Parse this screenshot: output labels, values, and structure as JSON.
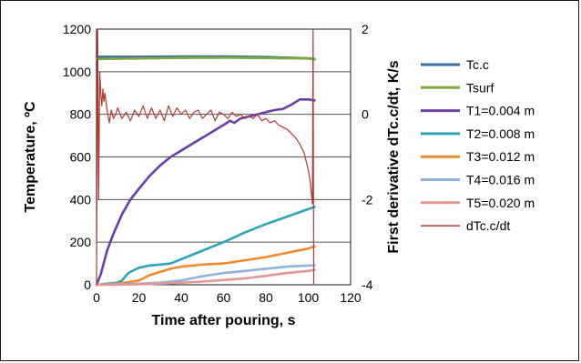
{
  "chart_data": {
    "type": "line",
    "xlabel": "Time after pouring, s",
    "ylabel": "Temperature, ºC",
    "y2label": "First derivative dTc.c/dt, K/s",
    "xlim": [
      0,
      120
    ],
    "ylim": [
      0,
      1200
    ],
    "y2lim": [
      -4,
      2
    ],
    "x_ticks": [
      "0",
      "20",
      "40",
      "60",
      "80",
      "100",
      "120"
    ],
    "y_ticks": [
      "0",
      "200",
      "400",
      "600",
      "800",
      "1000",
      "1200"
    ],
    "y2_ticks": [
      "-4",
      "-2",
      "0",
      "2"
    ],
    "grid": "horizontal",
    "legend_position": "right",
    "series": [
      {
        "name": "Tc.c",
        "color": "#3a6ea5",
        "axis": "left",
        "x": [
          0,
          20,
          40,
          60,
          80,
          100,
          103
        ],
        "y": [
          1070,
          1070,
          1072,
          1072,
          1069,
          1063,
          1060
        ]
      },
      {
        "name": "Tsurf",
        "color": "#7cab3e",
        "axis": "left",
        "x": [
          0,
          20,
          40,
          60,
          80,
          100,
          103
        ],
        "y": [
          1060,
          1062,
          1065,
          1066,
          1064,
          1062,
          1058
        ]
      },
      {
        "name": "T1=0.004 m",
        "color": "#6a40a8",
        "axis": "left",
        "x": [
          0,
          2,
          5,
          8,
          12,
          16,
          20,
          25,
          30,
          35,
          40,
          45,
          50,
          55,
          60,
          63,
          65,
          68,
          72,
          76,
          80,
          84,
          88,
          92,
          96,
          100,
          103
        ],
        "y": [
          0,
          50,
          160,
          240,
          330,
          400,
          450,
          510,
          560,
          600,
          630,
          660,
          690,
          720,
          750,
          770,
          760,
          780,
          790,
          800,
          810,
          820,
          825,
          845,
          870,
          870,
          865
        ]
      },
      {
        "name": "T2=0.008 m",
        "color": "#2fa4b8",
        "axis": "left",
        "x": [
          0,
          5,
          10,
          12,
          15,
          18,
          20,
          25,
          30,
          35,
          40,
          50,
          60,
          70,
          80,
          90,
          100,
          103
        ],
        "y": [
          0,
          5,
          10,
          20,
          55,
          70,
          80,
          90,
          95,
          100,
          120,
          160,
          200,
          245,
          285,
          320,
          355,
          365
        ]
      },
      {
        "name": "T3=0.012 m",
        "color": "#ef8a2c",
        "axis": "left",
        "x": [
          0,
          10,
          20,
          25,
          30,
          35,
          40,
          50,
          60,
          70,
          80,
          90,
          100,
          103
        ],
        "y": [
          0,
          5,
          20,
          45,
          60,
          75,
          85,
          95,
          100,
          115,
          130,
          150,
          170,
          180
        ]
      },
      {
        "name": "T4=0.016 m",
        "color": "#92b2de",
        "axis": "left",
        "x": [
          0,
          10,
          20,
          30,
          40,
          50,
          60,
          70,
          80,
          90,
          100,
          103
        ],
        "y": [
          0,
          2,
          5,
          10,
          20,
          40,
          55,
          65,
          75,
          85,
          90,
          92
        ]
      },
      {
        "name": "T5=0.020 m",
        "color": "#e19793",
        "axis": "left",
        "x": [
          0,
          10,
          20,
          30,
          40,
          50,
          60,
          70,
          80,
          90,
          100,
          103
        ],
        "y": [
          0,
          0,
          2,
          5,
          10,
          15,
          22,
          30,
          42,
          55,
          65,
          70
        ]
      },
      {
        "name": "dTc.c/dt",
        "color": "#b33b36",
        "axis": "right",
        "x": [
          0,
          0.5,
          1,
          1.5,
          2,
          2.5,
          3,
          3.5,
          4,
          5,
          6,
          7,
          8,
          9,
          10,
          12,
          14,
          16,
          18,
          20,
          22,
          24,
          26,
          28,
          30,
          32,
          34,
          36,
          38,
          40,
          42,
          44,
          46,
          48,
          50,
          52,
          54,
          56,
          58,
          60,
          62,
          64,
          66,
          68,
          70,
          72,
          74,
          76,
          78,
          80,
          82,
          84,
          86,
          88,
          90,
          92,
          94,
          96,
          98,
          99,
          100,
          101,
          102,
          102.3,
          102.6
        ],
        "y": [
          -4,
          2,
          -2,
          1,
          0.5,
          0.2,
          0.6,
          0.3,
          0.5,
          0.1,
          -0.2,
          0.1,
          -0.1,
          0.0,
          0.15,
          -0.1,
          0.05,
          -0.15,
          0.1,
          -0.05,
          0.2,
          -0.1,
          0.15,
          -0.1,
          0.1,
          -0.15,
          0.2,
          -0.05,
          0.15,
          0.0,
          0.1,
          -0.1,
          0.05,
          0.1,
          -0.1,
          0.0,
          0.1,
          -0.15,
          0.05,
          0.0,
          -0.1,
          0.05,
          -0.05,
          0.0,
          -0.1,
          -0.05,
          -0.1,
          0.0,
          -0.15,
          -0.1,
          -0.2,
          -0.15,
          -0.25,
          -0.3,
          -0.35,
          -0.45,
          -0.55,
          -0.7,
          -0.9,
          -1.1,
          -1.3,
          -1.6,
          -2.1,
          2,
          -4
        ]
      }
    ]
  }
}
